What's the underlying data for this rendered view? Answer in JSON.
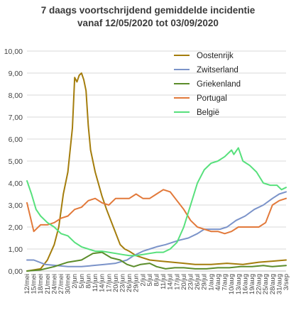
{
  "chart_data": {
    "type": "line",
    "title": "7 daags voortschrijdend gemiddelde incidentie",
    "subtitle": "vanaf 12/05/2020 tot 03/09/2020",
    "ylim": [
      0,
      10
    ],
    "yticks": [
      "0,00",
      "1,00",
      "2,00",
      "3,00",
      "4,00",
      "5,00",
      "6,00",
      "7,00",
      "8,00",
      "9,00",
      "10,00"
    ],
    "grid": true,
    "legend_position": "top-right",
    "xdomain": [
      "12/mei",
      "3/sep"
    ],
    "xticks": [
      "12/mei",
      "15/mei",
      "18/mei",
      "21/mei",
      "24/mei",
      "27/mei",
      "30/mei",
      "2/jun",
      "5/jun",
      "8/jun",
      "11/jun",
      "14/jun",
      "17/jun",
      "20/jun",
      "23/jun",
      "26/jun",
      "29/jun",
      "2/jul",
      "5/jul",
      "8/jul",
      "11/jul",
      "14/jul",
      "17/jul",
      "20/jul",
      "23/jul",
      "26/jul",
      "29/jul",
      "1/aug",
      "4/aug",
      "7/aug",
      "10/aug",
      "13/aug",
      "16/aug",
      "19/aug",
      "22/aug",
      "25/aug",
      "28/aug",
      "31/aug",
      "3/sep"
    ],
    "series": [
      {
        "name": "Oostenrijk",
        "color": "#a47d0c",
        "x": [
          "12/mei",
          "18/mei",
          "21/mei",
          "24/mei",
          "26/mei",
          "28/mei",
          "30/mei",
          "1/jun",
          "2/jun",
          "3/jun",
          "4/jun",
          "5/jun",
          "6/jun",
          "7/jun",
          "8/jun",
          "9/jun",
          "11/jun",
          "14/jun",
          "16/jun",
          "19/jun",
          "22/jun",
          "24/jun",
          "26/jun",
          "29/jun",
          "2/jul",
          "5/jul",
          "10/jul",
          "15/jul",
          "20/jul",
          "25/jul",
          "1/aug",
          "8/aug",
          "15/aug",
          "22/aug",
          "28/aug",
          "3/sep"
        ],
        "y": [
          0.0,
          0.1,
          0.5,
          1.2,
          2.0,
          3.5,
          4.5,
          6.5,
          8.8,
          8.6,
          8.9,
          9.0,
          8.7,
          8.2,
          6.6,
          5.5,
          4.5,
          3.4,
          2.8,
          2.0,
          1.2,
          1.0,
          0.9,
          0.7,
          0.6,
          0.5,
          0.45,
          0.4,
          0.35,
          0.3,
          0.3,
          0.35,
          0.3,
          0.4,
          0.45,
          0.5
        ]
      },
      {
        "name": "Zwitserland",
        "color": "#7b93c9",
        "x": [
          "12/mei",
          "15/mei",
          "20/mei",
          "25/mei",
          "30/mei",
          "5/jun",
          "10/jun",
          "15/jun",
          "20/jun",
          "25/jun",
          "28/jun",
          "2/jul",
          "5/jul",
          "8/jul",
          "12/jul",
          "15/jul",
          "18/jul",
          "22/jul",
          "26/jul",
          "29/jul",
          "1/aug",
          "5/aug",
          "8/aug",
          "12/aug",
          "16/aug",
          "20/aug",
          "24/aug",
          "28/aug",
          "31/aug",
          "3/sep"
        ],
        "y": [
          0.5,
          0.5,
          0.3,
          0.25,
          0.2,
          0.2,
          0.25,
          0.3,
          0.35,
          0.5,
          0.7,
          0.9,
          1.0,
          1.1,
          1.2,
          1.3,
          1.4,
          1.5,
          1.7,
          1.9,
          1.9,
          1.9,
          2.0,
          2.3,
          2.5,
          2.8,
          3.0,
          3.3,
          3.5,
          3.6
        ]
      },
      {
        "name": "Griekenland",
        "color": "#5b8c2a",
        "x": [
          "12/mei",
          "18/mei",
          "24/mei",
          "30/mei",
          "5/jun",
          "10/jun",
          "14/jun",
          "18/jun",
          "22/jun",
          "25/jun",
          "28/jun",
          "1/jul",
          "5/jul",
          "8/jul",
          "12/jul",
          "16/jul",
          "20/jul",
          "25/jul",
          "30/jul",
          "4/aug",
          "9/aug",
          "14/aug",
          "19/aug",
          "24/aug",
          "28/aug",
          "3/sep"
        ],
        "y": [
          0.0,
          0.05,
          0.2,
          0.4,
          0.5,
          0.8,
          0.85,
          0.6,
          0.5,
          0.3,
          0.2,
          0.3,
          0.35,
          0.2,
          0.1,
          0.15,
          0.15,
          0.1,
          0.1,
          0.15,
          0.15,
          0.2,
          0.2,
          0.25,
          0.2,
          0.25
        ]
      },
      {
        "name": "Portugal",
        "color": "#e2793a",
        "x": [
          "12/mei",
          "15/mei",
          "18/mei",
          "21/mei",
          "24/mei",
          "27/mei",
          "30/mei",
          "2/jun",
          "5/jun",
          "8/jun",
          "11/jun",
          "14/jun",
          "17/jun",
          "20/jun",
          "23/jun",
          "26/jun",
          "29/jun",
          "2/jul",
          "5/jul",
          "8/jul",
          "11/jul",
          "14/jul",
          "17/jul",
          "20/jul",
          "23/jul",
          "26/jul",
          "29/jul",
          "1/aug",
          "4/aug",
          "7/aug",
          "10/aug",
          "13/aug",
          "16/aug",
          "19/aug",
          "22/aug",
          "25/aug",
          "28/aug",
          "31/aug",
          "3/sep"
        ],
        "y": [
          3.1,
          1.8,
          2.1,
          2.1,
          2.2,
          2.4,
          2.5,
          2.8,
          2.9,
          3.2,
          3.3,
          3.1,
          3.0,
          3.3,
          3.3,
          3.3,
          3.5,
          3.3,
          3.3,
          3.5,
          3.7,
          3.6,
          3.2,
          2.8,
          2.3,
          2.0,
          1.9,
          1.8,
          1.8,
          1.7,
          1.8,
          2.0,
          2.0,
          2.0,
          2.0,
          2.2,
          3.0,
          3.2,
          3.3
        ]
      },
      {
        "name": "België",
        "color": "#57e07c",
        "x": [
          "12/mei",
          "14/mei",
          "16/mei",
          "18/mei",
          "21/mei",
          "24/mei",
          "27/mei",
          "30/mei",
          "2/jun",
          "5/jun",
          "8/jun",
          "11/jun",
          "14/jun",
          "17/jun",
          "20/jun",
          "23/jun",
          "26/jun",
          "29/jun",
          "2/jul",
          "5/jul",
          "8/jul",
          "11/jul",
          "14/jul",
          "17/jul",
          "20/jul",
          "23/jul",
          "26/jul",
          "29/jul",
          "1/aug",
          "4/aug",
          "7/aug",
          "10/aug",
          "11/aug",
          "13/aug",
          "15/aug",
          "18/aug",
          "21/aug",
          "24/aug",
          "27/aug",
          "30/aug",
          "1/sep",
          "3/sep"
        ],
        "y": [
          4.1,
          3.5,
          2.8,
          2.5,
          2.2,
          2.0,
          1.7,
          1.6,
          1.3,
          1.1,
          1.0,
          0.9,
          0.9,
          0.85,
          0.8,
          0.75,
          0.7,
          0.7,
          0.75,
          0.8,
          0.85,
          0.85,
          1.0,
          1.3,
          2.0,
          3.0,
          4.0,
          4.6,
          4.9,
          5.0,
          5.2,
          5.5,
          5.3,
          5.6,
          5.0,
          4.8,
          4.5,
          4.0,
          3.9,
          3.9,
          3.7,
          3.8
        ]
      }
    ]
  }
}
